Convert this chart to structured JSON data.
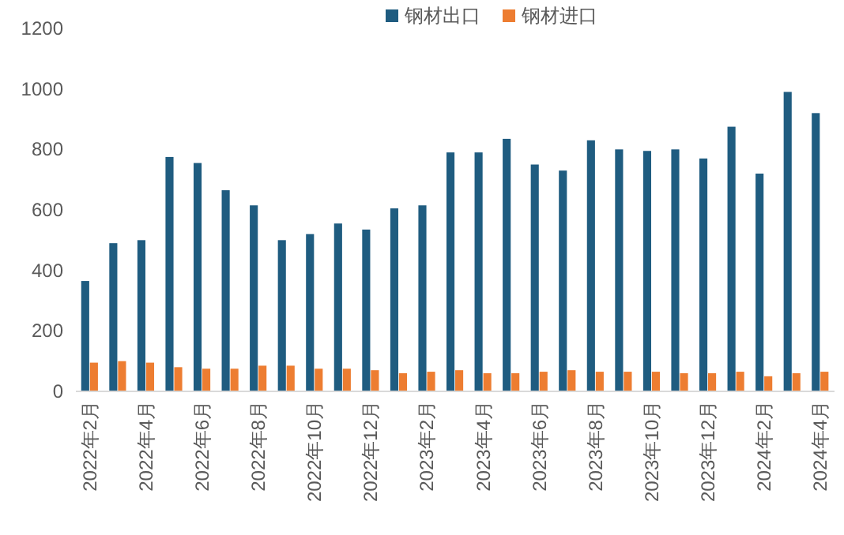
{
  "chart_data": {
    "type": "bar",
    "categories": [
      "2022年2月",
      null,
      "2022年4月",
      null,
      "2022年6月",
      null,
      "2022年8月",
      null,
      "2022年10月",
      null,
      "2022年12月",
      null,
      "2023年2月",
      null,
      "2023年4月",
      null,
      "2023年6月",
      null,
      "2023年8月",
      null,
      "2023年10月",
      null,
      "2023年12月",
      null,
      "2024年2月",
      null,
      "2024年4月"
    ],
    "series": [
      {
        "name": "钢材出口",
        "color": "#1f5c80",
        "values": [
          365,
          490,
          500,
          775,
          755,
          665,
          615,
          500,
          520,
          555,
          535,
          605,
          615,
          790,
          790,
          835,
          750,
          730,
          830,
          800,
          795,
          800,
          770,
          875,
          720,
          990,
          920
        ]
      },
      {
        "name": "钢材进口",
        "color": "#ed7d31",
        "values": [
          95,
          100,
          95,
          80,
          75,
          75,
          85,
          85,
          75,
          75,
          70,
          60,
          65,
          70,
          60,
          60,
          65,
          70,
          65,
          65,
          65,
          60,
          60,
          65,
          50,
          60,
          65
        ]
      }
    ],
    "ylim": [
      0,
      1200
    ],
    "yticks": [
      0,
      200,
      400,
      600,
      800,
      1000,
      1200
    ],
    "legend": "top"
  }
}
